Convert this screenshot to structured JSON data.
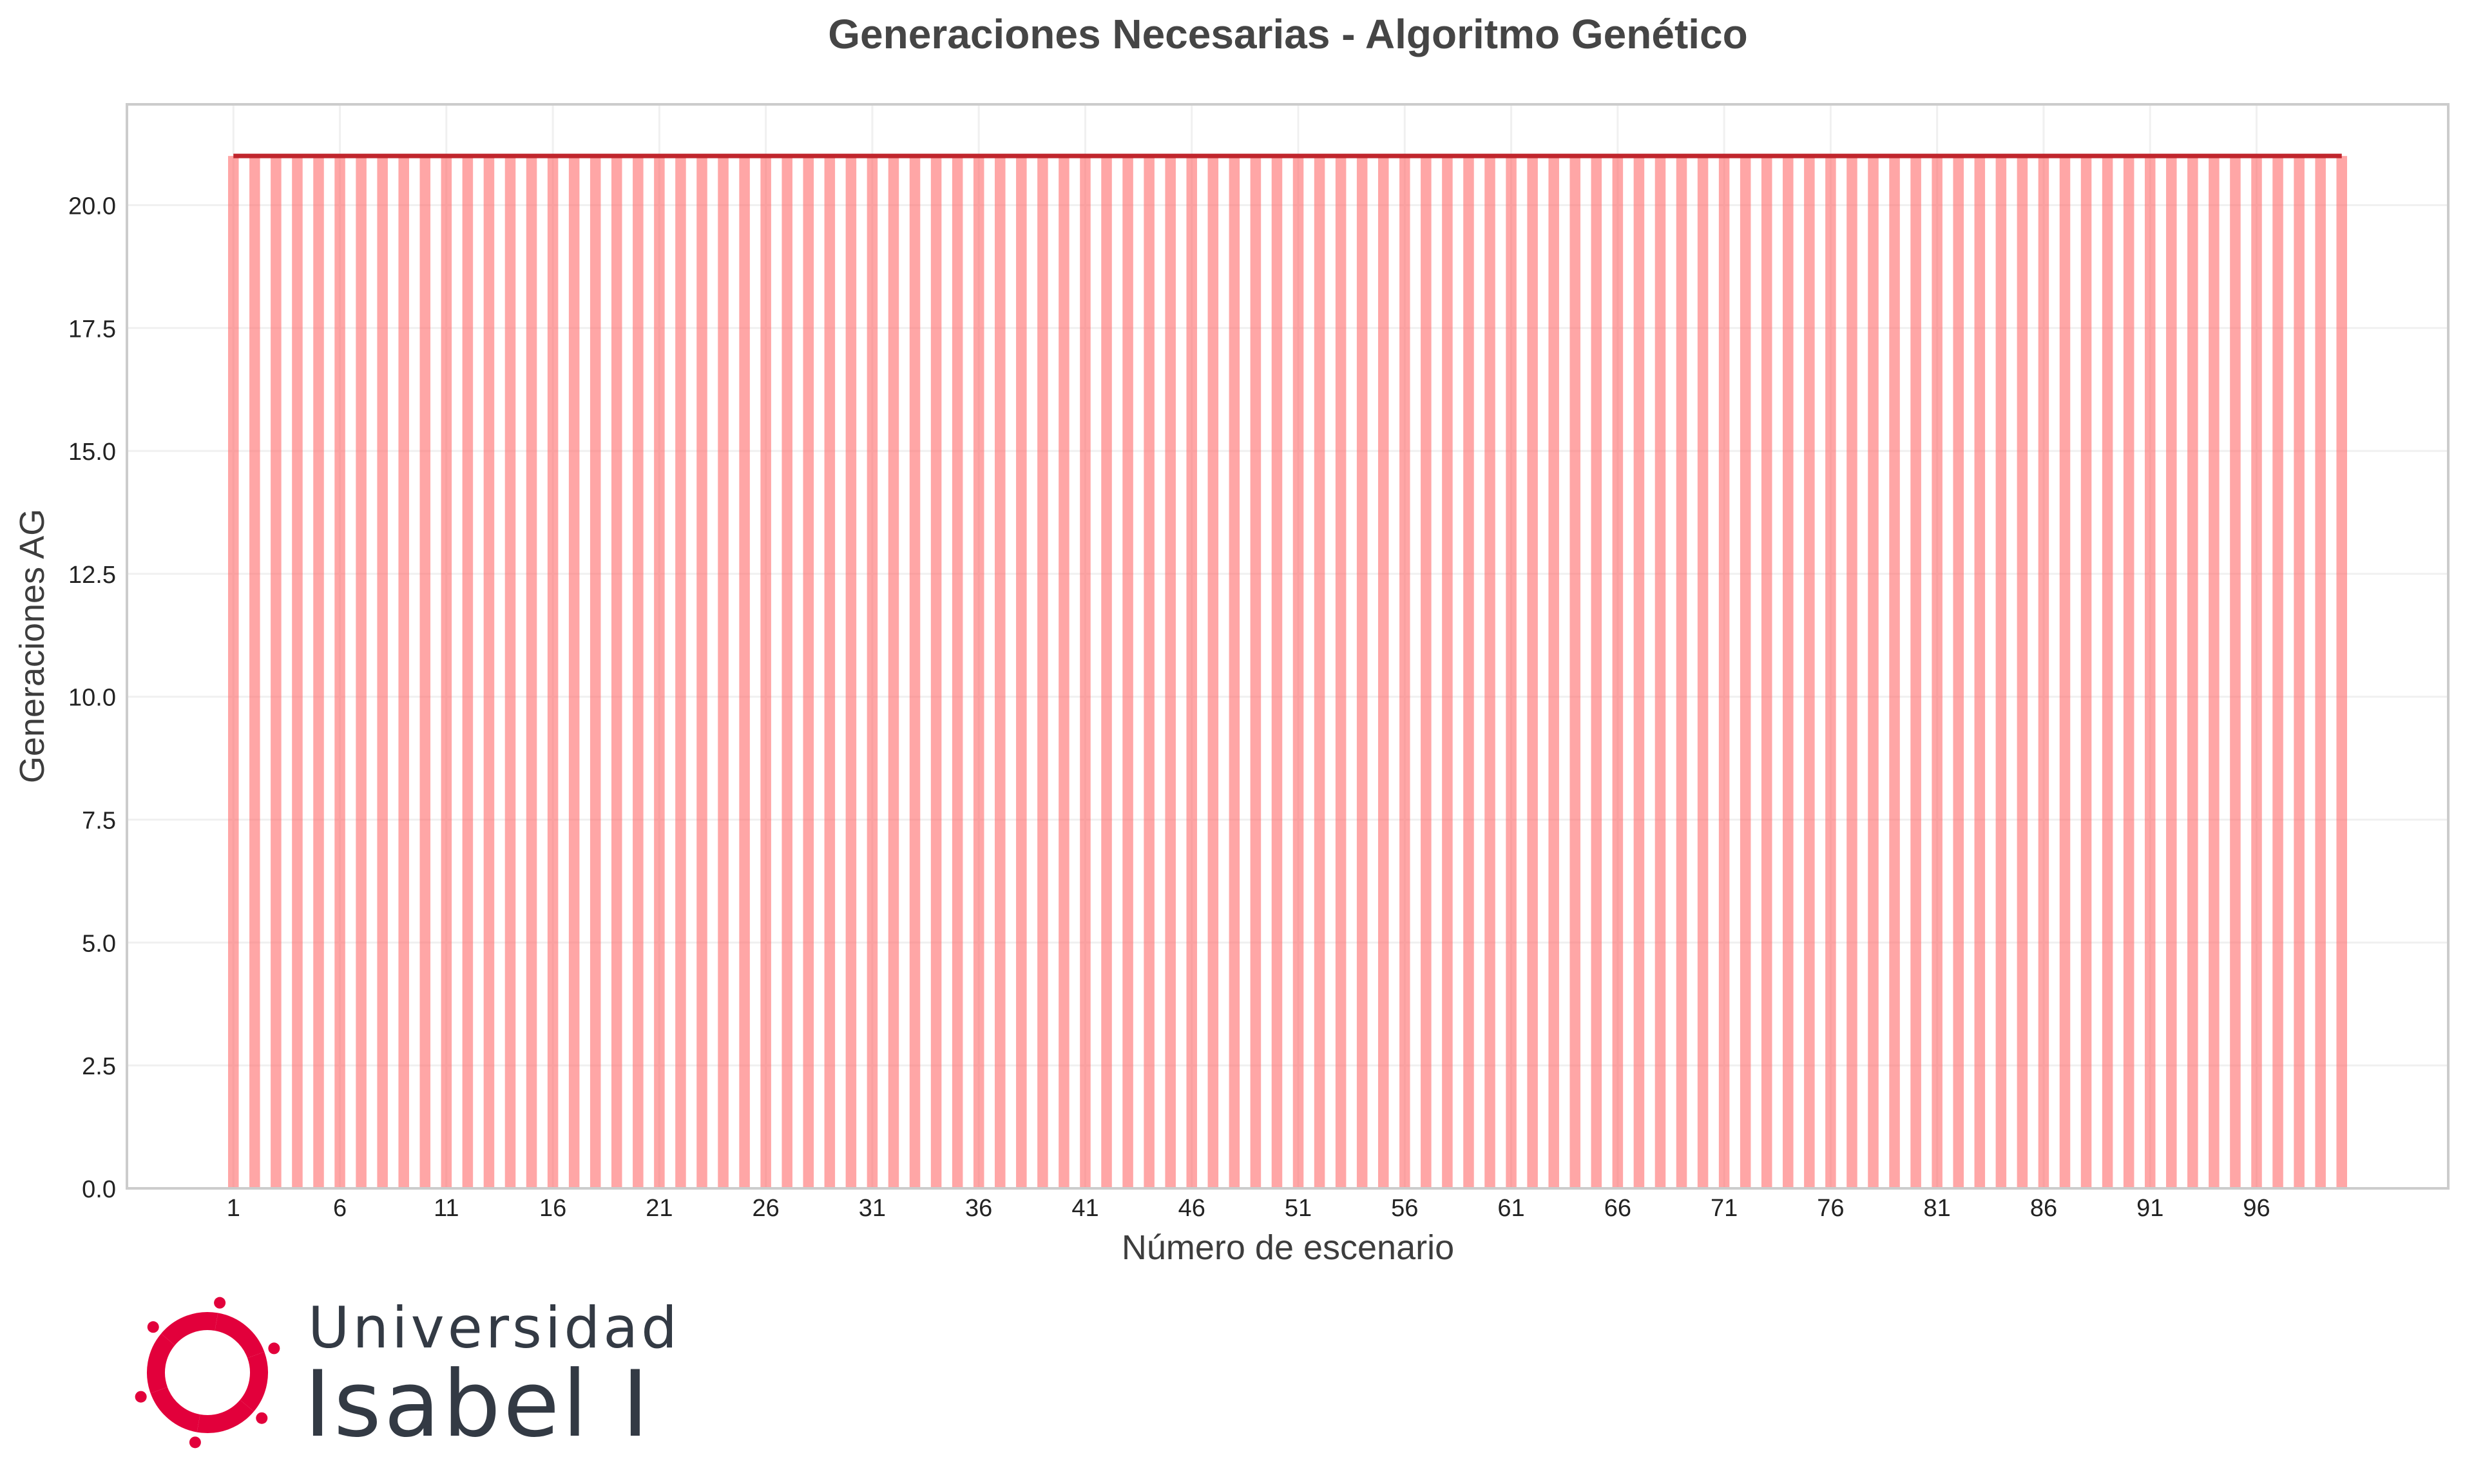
{
  "chart_data": {
    "type": "bar",
    "title": "Generaciones Necesarias - Algoritmo Genético",
    "xlabel": "Número de escenario",
    "ylabel": "Generaciones AG",
    "x": [
      1,
      2,
      3,
      4,
      5,
      6,
      7,
      8,
      9,
      10,
      11,
      12,
      13,
      14,
      15,
      16,
      17,
      18,
      19,
      20,
      21,
      22,
      23,
      24,
      25,
      26,
      27,
      28,
      29,
      30,
      31,
      32,
      33,
      34,
      35,
      36,
      37,
      38,
      39,
      40,
      41,
      42,
      43,
      44,
      45,
      46,
      47,
      48,
      49,
      50,
      51,
      52,
      53,
      54,
      55,
      56,
      57,
      58,
      59,
      60,
      61,
      62,
      63,
      64,
      65,
      66,
      67,
      68,
      69,
      70,
      71,
      72,
      73,
      74,
      75,
      76,
      77,
      78,
      79,
      80,
      81,
      82,
      83,
      84,
      85,
      86,
      87,
      88,
      89,
      90,
      91,
      92,
      93,
      94,
      95,
      96,
      97,
      98,
      99,
      100
    ],
    "values": [
      21,
      21,
      21,
      21,
      21,
      21,
      21,
      21,
      21,
      21,
      21,
      21,
      21,
      21,
      21,
      21,
      21,
      21,
      21,
      21,
      21,
      21,
      21,
      21,
      21,
      21,
      21,
      21,
      21,
      21,
      21,
      21,
      21,
      21,
      21,
      21,
      21,
      21,
      21,
      21,
      21,
      21,
      21,
      21,
      21,
      21,
      21,
      21,
      21,
      21,
      21,
      21,
      21,
      21,
      21,
      21,
      21,
      21,
      21,
      21,
      21,
      21,
      21,
      21,
      21,
      21,
      21,
      21,
      21,
      21,
      21,
      21,
      21,
      21,
      21,
      21,
      21,
      21,
      21,
      21,
      21,
      21,
      21,
      21,
      21,
      21,
      21,
      21,
      21,
      21,
      21,
      21,
      21,
      21,
      21,
      21,
      21,
      21,
      21,
      21
    ],
    "line_values": [
      21,
      21,
      21,
      21,
      21,
      21,
      21,
      21,
      21,
      21,
      21,
      21,
      21,
      21,
      21,
      21,
      21,
      21,
      21,
      21,
      21,
      21,
      21,
      21,
      21,
      21,
      21,
      21,
      21,
      21,
      21,
      21,
      21,
      21,
      21,
      21,
      21,
      21,
      21,
      21,
      21,
      21,
      21,
      21,
      21,
      21,
      21,
      21,
      21,
      21,
      21,
      21,
      21,
      21,
      21,
      21,
      21,
      21,
      21,
      21,
      21,
      21,
      21,
      21,
      21,
      21,
      21,
      21,
      21,
      21,
      21,
      21,
      21,
      21,
      21,
      21,
      21,
      21,
      21,
      21,
      21,
      21,
      21,
      21,
      21,
      21,
      21,
      21,
      21,
      21,
      21,
      21,
      21,
      21,
      21,
      21,
      21,
      21,
      21,
      21
    ],
    "xticks": [
      "1",
      "6",
      "11",
      "16",
      "21",
      "26",
      "31",
      "36",
      "41",
      "46",
      "51",
      "56",
      "61",
      "66",
      "71",
      "76",
      "81",
      "86",
      "91",
      "96"
    ],
    "yticks": [
      "0.0",
      "2.5",
      "5.0",
      "7.5",
      "10.0",
      "12.5",
      "15.0",
      "17.5",
      "20.0"
    ],
    "xlim": [
      -4,
      105
    ],
    "ylim": [
      0,
      22.05
    ],
    "grid": true,
    "colors": {
      "bar": "#ff6b6b",
      "line": "#c0262d",
      "grid": "#f0f0f0",
      "frame": "#cccccc"
    }
  },
  "logo": {
    "line1": "Universidad",
    "line2": "Isabel I",
    "color": "#e2003b"
  }
}
